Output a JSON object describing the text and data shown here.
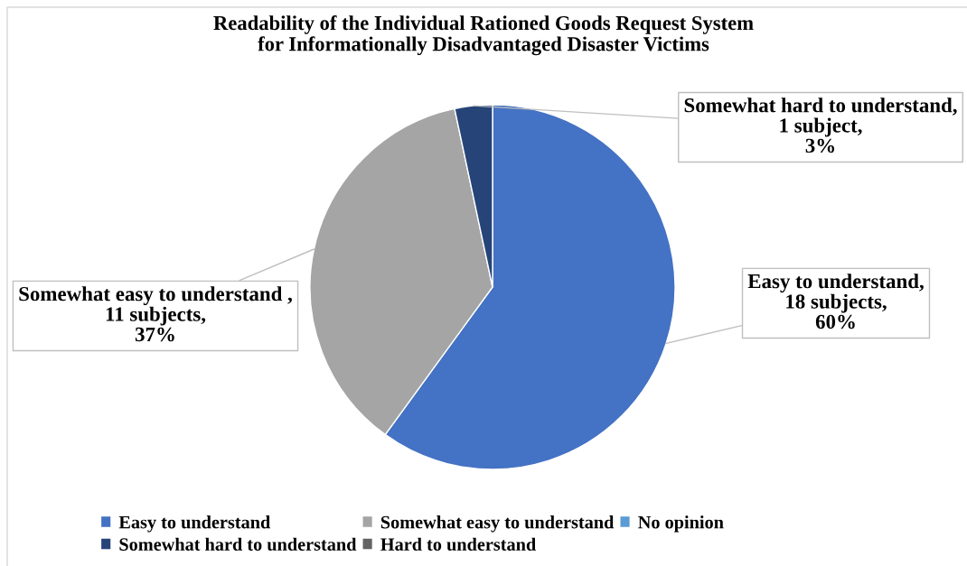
{
  "chart_data": {
    "type": "pie",
    "title": "Readability of the Individual Rationed Goods Request System\nfor Informationally Disadvantaged Disaster Victims",
    "categories": [
      "Easy to understand",
      "Somewhat easy to understand",
      "No opinion",
      "Somewhat hard to understand",
      "Hard to understand"
    ],
    "values": [
      18,
      11,
      0,
      1,
      0
    ],
    "colors": [
      "#4472c4",
      "#a5a5a5",
      "#5b9bd5",
      "#264478",
      "#636363"
    ],
    "value_labels": [
      "Easy to understand,\n18 subjects,\n60%",
      "Somewhat easy to understand ,\n11 subjects,\n37%",
      null,
      "Somewhat hard to understand,\n1 subject,\n3%",
      null
    ],
    "legend": "bottom"
  }
}
